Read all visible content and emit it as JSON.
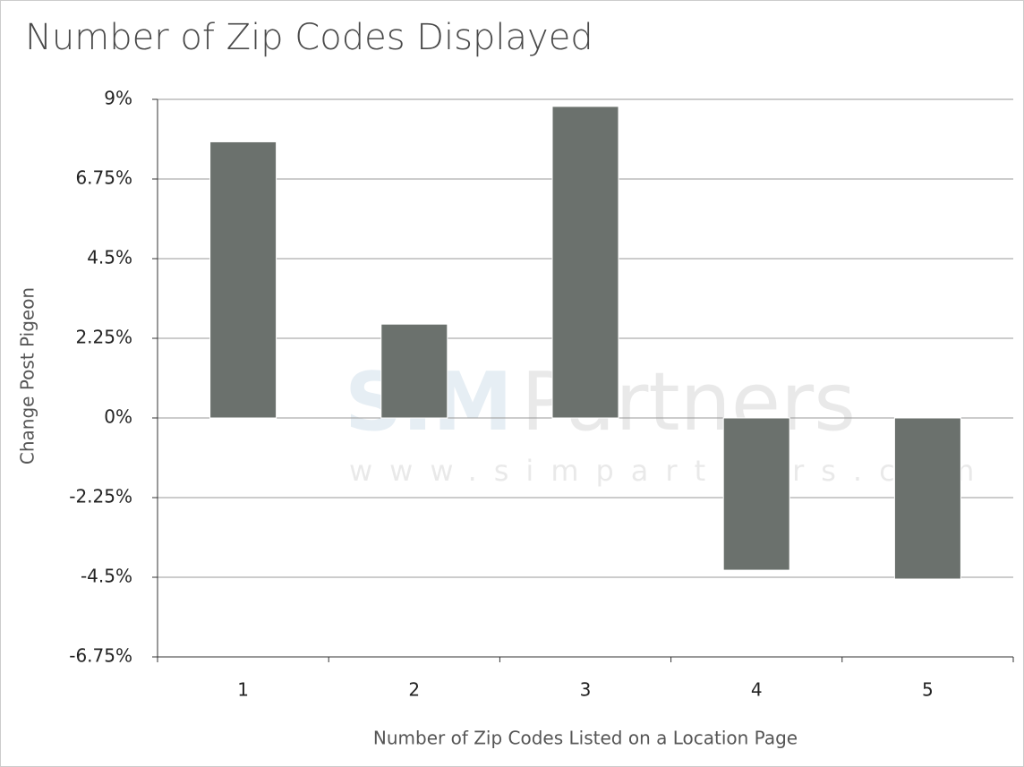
{
  "chart_data": {
    "type": "bar",
    "title": "Number of Zip Codes Displayed",
    "x_label": "Number of Zip Codes Listed on a Location Page",
    "y_label": "Change Post Pigeon",
    "categories": [
      "1",
      "2",
      "3",
      "4",
      "5"
    ],
    "values": [
      7.8,
      2.65,
      8.8,
      -4.3,
      -4.55
    ],
    "color": "#6b716d",
    "ylim": [
      -6.75,
      9
    ],
    "yticks": [
      {
        "value": -6.75,
        "label": "-6.75%"
      },
      {
        "value": -4.5,
        "label": "-4.5%"
      },
      {
        "value": -2.25,
        "label": "-2.25%"
      },
      {
        "value": 0,
        "label": "0%"
      },
      {
        "value": 2.25,
        "label": "2.25%"
      },
      {
        "value": 4.5,
        "label": "4.5%"
      },
      {
        "value": 6.75,
        "label": "6.75%"
      },
      {
        "value": 9,
        "label": "9%"
      }
    ],
    "grid": true,
    "watermark": {
      "brand_bold": "SIM",
      "brand": "Partners",
      "url": "www.simpartners.com"
    }
  }
}
